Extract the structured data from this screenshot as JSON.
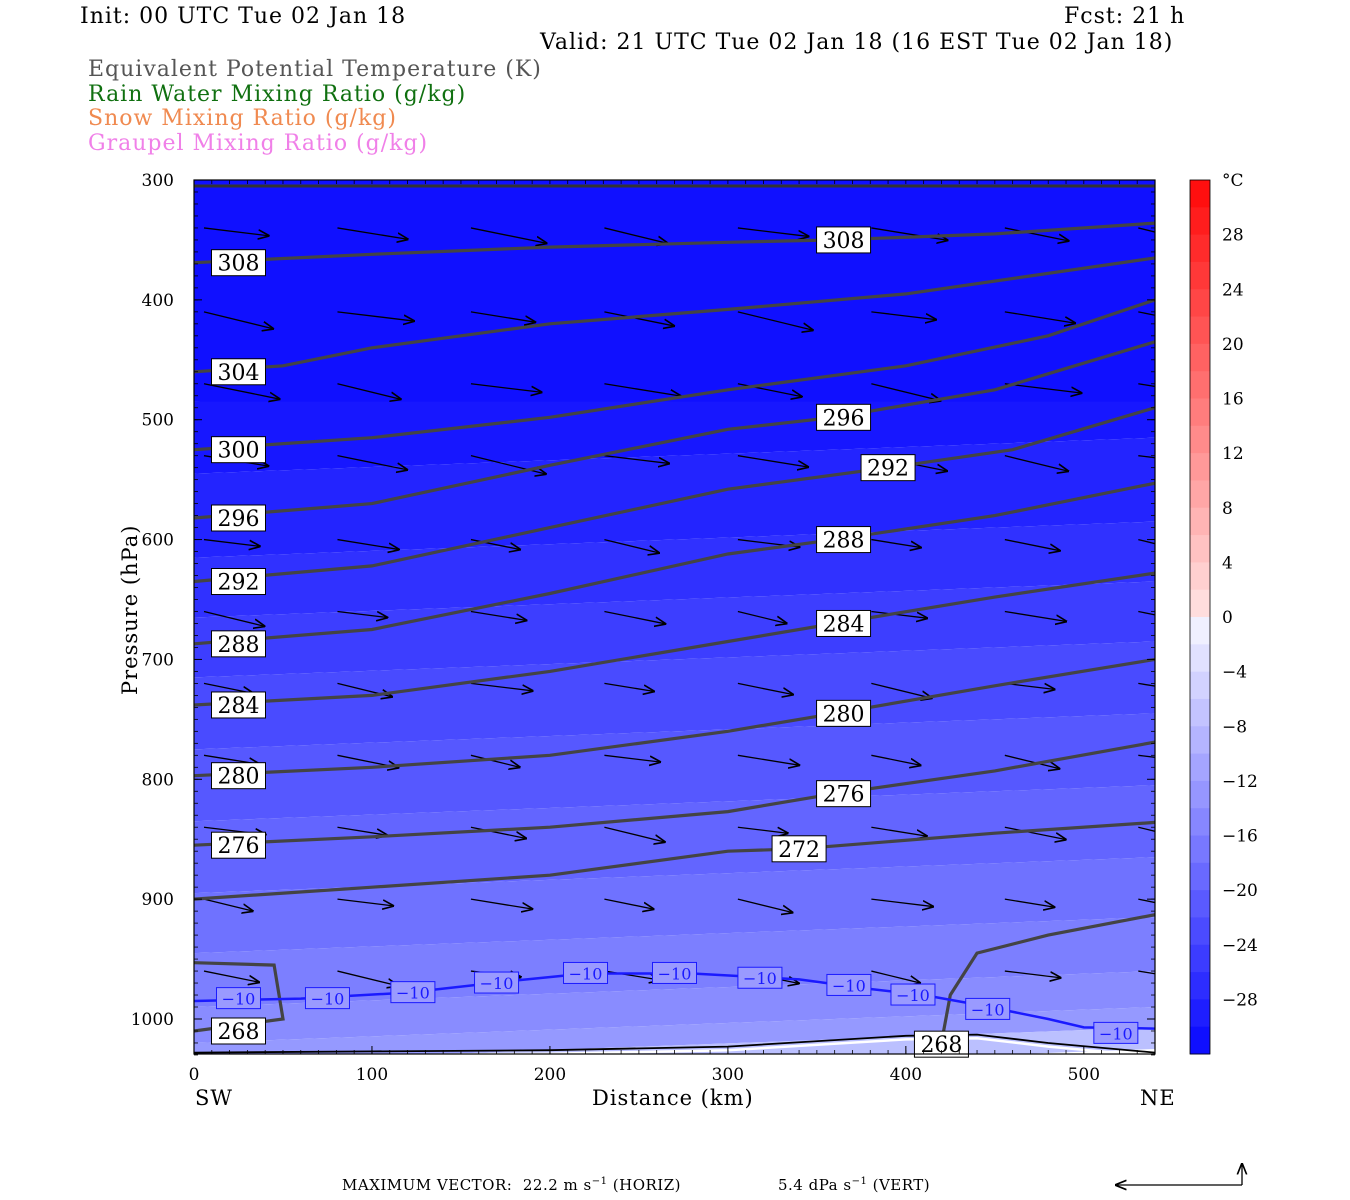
{
  "header": {
    "init": "Init: 00 UTC Tue 02 Jan 18",
    "fcst": "Fcst:   21 h",
    "valid": "Valid: 21 UTC Tue 02 Jan 18 (16 EST Tue 02 Jan 18)"
  },
  "legend": [
    {
      "text": "Equivalent Potential Temperature (K)",
      "color": "#555555"
    },
    {
      "text": "Rain Water Mixing Ratio (g/kg)",
      "color": "#107010"
    },
    {
      "text": "Snow Mixing Ratio (g/kg)",
      "color": "#f08a50"
    },
    {
      "text": "Graupel Mixing Ratio (g/kg)",
      "color": "#f080e8"
    }
  ],
  "chart_data": {
    "type": "cross-section",
    "xlabel": "Distance (km)",
    "ylabel": "Pressure (hPa)",
    "x_ticks": [
      0,
      100,
      200,
      300,
      400,
      500
    ],
    "xlim": [
      0,
      540
    ],
    "y_ticks": [
      300,
      400,
      500,
      600,
      700,
      800,
      900,
      1000
    ],
    "ylim": [
      300,
      1030
    ],
    "left_end": "SW",
    "right_end": "NE",
    "colorbar": {
      "unit": "°C",
      "tick_labels": [
        "28",
        "24",
        "20",
        "16",
        "12",
        "8",
        "4",
        "0",
        "−4",
        "−8",
        "−12",
        "−16",
        "−20",
        "−24",
        "−28"
      ],
      "tick_values": [
        28,
        24,
        20,
        16,
        12,
        8,
        4,
        0,
        -4,
        -8,
        -12,
        -16,
        -20,
        -24,
        -28
      ],
      "range": [
        -32,
        32
      ]
    },
    "theta_e_contours": [
      {
        "label": "308",
        "points": [
          [
            0,
            369
          ],
          [
            100,
            362
          ],
          [
            200,
            356
          ],
          [
            300,
            352
          ],
          [
            360,
            350
          ],
          [
            450,
            345
          ],
          [
            540,
            336
          ]
        ],
        "labels": [
          [
            25,
            369
          ],
          [
            365,
            350
          ]
        ]
      },
      {
        "label": "304",
        "points": [
          [
            0,
            460
          ],
          [
            50,
            455
          ],
          [
            100,
            440
          ],
          [
            200,
            420
          ],
          [
            300,
            408
          ],
          [
            400,
            395
          ],
          [
            540,
            365
          ]
        ],
        "labels": [
          [
            25,
            460
          ]
        ]
      },
      {
        "label": "300",
        "points": [
          [
            0,
            525
          ],
          [
            100,
            515
          ],
          [
            200,
            498
          ],
          [
            300,
            475
          ],
          [
            400,
            455
          ],
          [
            480,
            430
          ],
          [
            540,
            400
          ]
        ],
        "labels": [
          [
            25,
            525
          ]
        ]
      },
      {
        "label": "296",
        "points": [
          [
            0,
            582
          ],
          [
            100,
            570
          ],
          [
            200,
            538
          ],
          [
            300,
            508
          ],
          [
            360,
            498
          ],
          [
            450,
            475
          ],
          [
            540,
            435
          ]
        ],
        "labels": [
          [
            25,
            582
          ],
          [
            365,
            498
          ]
        ]
      },
      {
        "label": "292",
        "points": [
          [
            0,
            635
          ],
          [
            100,
            622
          ],
          [
            200,
            590
          ],
          [
            300,
            558
          ],
          [
            390,
            540
          ],
          [
            460,
            525
          ],
          [
            540,
            490
          ]
        ],
        "labels": [
          [
            25,
            635
          ],
          [
            390,
            540
          ]
        ]
      },
      {
        "label": "288",
        "points": [
          [
            0,
            687
          ],
          [
            100,
            675
          ],
          [
            200,
            645
          ],
          [
            300,
            612
          ],
          [
            360,
            600
          ],
          [
            450,
            580
          ],
          [
            540,
            553
          ]
        ],
        "labels": [
          [
            25,
            687
          ],
          [
            365,
            600
          ]
        ]
      },
      {
        "label": "284",
        "points": [
          [
            0,
            738
          ],
          [
            100,
            730
          ],
          [
            200,
            710
          ],
          [
            300,
            685
          ],
          [
            360,
            670
          ],
          [
            450,
            648
          ],
          [
            540,
            628
          ]
        ],
        "labels": [
          [
            25,
            738
          ],
          [
            365,
            670
          ]
        ]
      },
      {
        "label": "280",
        "points": [
          [
            0,
            797
          ],
          [
            100,
            790
          ],
          [
            200,
            780
          ],
          [
            300,
            760
          ],
          [
            360,
            745
          ],
          [
            450,
            722
          ],
          [
            540,
            700
          ]
        ],
        "labels": [
          [
            25,
            797
          ],
          [
            365,
            745
          ]
        ]
      },
      {
        "label": "276",
        "points": [
          [
            0,
            855
          ],
          [
            100,
            848
          ],
          [
            200,
            840
          ],
          [
            300,
            827
          ],
          [
            360,
            812
          ],
          [
            450,
            793
          ],
          [
            540,
            769
          ]
        ],
        "labels": [
          [
            25,
            855
          ],
          [
            365,
            812
          ]
        ]
      },
      {
        "label": "272",
        "points": [
          [
            0,
            900
          ],
          [
            100,
            890
          ],
          [
            200,
            880
          ],
          [
            300,
            860
          ],
          [
            340,
            858
          ],
          [
            450,
            845
          ],
          [
            540,
            836
          ]
        ],
        "labels": [
          [
            340,
            858
          ]
        ]
      },
      {
        "label": "268",
        "points": [
          [
            0,
            1010
          ],
          [
            50,
            1000
          ],
          [
            45,
            955
          ],
          [
            0,
            953
          ]
        ],
        "labels": [
          [
            25,
            1010
          ]
        ]
      },
      {
        "label": "268",
        "points": [
          [
            420,
            1020
          ],
          [
            425,
            980
          ],
          [
            440,
            945
          ],
          [
            480,
            930
          ],
          [
            540,
            913
          ]
        ],
        "labels": [
          [
            420,
            1021
          ]
        ]
      }
    ],
    "isotherm_minus10": {
      "label": "−10",
      "points": [
        [
          0,
          985
        ],
        [
          60,
          983
        ],
        [
          120,
          978
        ],
        [
          180,
          968
        ],
        [
          220,
          962
        ],
        [
          280,
          962
        ],
        [
          340,
          967
        ],
        [
          380,
          975
        ],
        [
          410,
          980
        ],
        [
          440,
          988
        ],
        [
          480,
          1000
        ],
        [
          500,
          1007
        ],
        [
          540,
          1008
        ]
      ],
      "labels": [
        [
          25,
          983
        ],
        [
          75,
          983
        ],
        [
          123,
          978
        ],
        [
          170,
          970
        ],
        [
          220,
          962
        ],
        [
          270,
          962
        ],
        [
          318,
          966
        ],
        [
          368,
          972
        ],
        [
          404,
          980
        ],
        [
          446,
          992
        ],
        [
          518,
          1012
        ]
      ]
    },
    "zero_isotherm": [
      [
        0,
        1028
      ],
      [
        100,
        1027
      ],
      [
        200,
        1026
      ],
      [
        300,
        1023
      ],
      [
        400,
        1014
      ],
      [
        440,
        1013
      ],
      [
        480,
        1020
      ],
      [
        540,
        1028
      ]
    ],
    "wind_vectors": "horizontal wind and vertical motion vectors on a regular grid, mostly pointing east-southeast",
    "max_vector": {
      "label": "MAXIMUM VECTOR:",
      "horiz": "22.2 m s",
      "horiz_exp": "−1",
      "horiz_tag": "(HORIZ)",
      "vert": "5.4 dPa s",
      "vert_exp": "−1",
      "vert_tag": "(VERT)"
    }
  }
}
